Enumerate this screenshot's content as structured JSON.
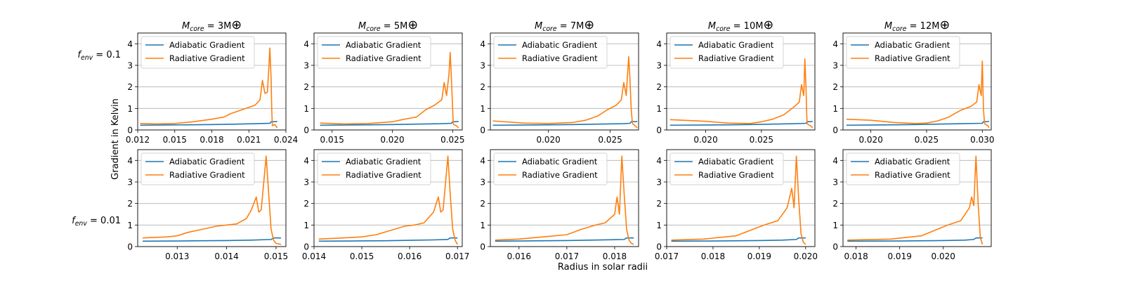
{
  "figure": {
    "ylabel": "Gradient in Kelvin",
    "xlabel": "Radius in solar radii",
    "row_labels": [
      "f_env = 0.1",
      "f_env = 0.01"
    ],
    "col_titles": [
      "M_core = 3M⊕",
      "M_core = 5M⊕",
      "M_core = 7M⊕",
      "M_core = 10M⊕",
      "M_core = 12M⊕"
    ],
    "colors": {
      "adiabatic": "#1f77b4",
      "radiative": "#ff7f0e",
      "grid": "#b0b0b0"
    }
  },
  "chart_data": [
    {
      "type": "line",
      "title": "M_core = 3M⊕",
      "row_label": "f_env = 0.1",
      "xlim": [
        0.012,
        0.024
      ],
      "ylim": [
        0,
        4.5
      ],
      "xticks": [
        "0.012",
        "0.015",
        "0.018",
        "0.021",
        "0.024"
      ],
      "yticks": [
        "0",
        "1",
        "2",
        "3",
        "4"
      ],
      "legend": [
        "Adiabatic Gradient",
        "Radiative Gradient"
      ],
      "legend_loc": "upper-left",
      "grid": "y",
      "series": [
        {
          "name": "Adiabatic Gradient",
          "x": [
            0.0122,
            0.014,
            0.016,
            0.018,
            0.02,
            0.0215,
            0.0227,
            0.0228,
            0.0232,
            0.0233
          ],
          "y": [
            0.22,
            0.23,
            0.24,
            0.25,
            0.27,
            0.29,
            0.31,
            0.38,
            0.39,
            0.4
          ]
        },
        {
          "name": "Radiative Gradient",
          "x": [
            0.0122,
            0.0135,
            0.015,
            0.0165,
            0.018,
            0.019,
            0.0195,
            0.0205,
            0.021,
            0.0215,
            0.0219,
            0.0221,
            0.0223,
            0.0225,
            0.0226,
            0.0227,
            0.0228,
            0.02285,
            0.0229,
            0.0231,
            0.0233
          ],
          "y": [
            0.3,
            0.28,
            0.3,
            0.38,
            0.5,
            0.6,
            0.75,
            0.95,
            1.05,
            1.15,
            1.4,
            2.3,
            1.7,
            1.75,
            2.7,
            3.8,
            2.4,
            1.0,
            0.2,
            0.25,
            0.1
          ]
        }
      ]
    },
    {
      "type": "line",
      "title": "M_core = 5M⊕",
      "row_label": "",
      "xlim": [
        0.0135,
        0.0258
      ],
      "ylim": [
        0,
        4.5
      ],
      "xticks": [
        "0.015",
        "0.020",
        "0.025"
      ],
      "yticks": [
        "0",
        "1",
        "2",
        "3",
        "4"
      ],
      "legend": [
        "Adiabatic Gradient",
        "Radiative Gradient"
      ],
      "legend_loc": "upper-left",
      "grid": "y",
      "series": [
        {
          "name": "Adiabatic Gradient",
          "x": [
            0.014,
            0.016,
            0.018,
            0.02,
            0.022,
            0.024,
            0.0249,
            0.025,
            0.0254,
            0.0255
          ],
          "y": [
            0.22,
            0.23,
            0.24,
            0.25,
            0.27,
            0.29,
            0.31,
            0.38,
            0.39,
            0.4
          ]
        },
        {
          "name": "Radiative Gradient",
          "x": [
            0.014,
            0.016,
            0.018,
            0.02,
            0.021,
            0.022,
            0.0228,
            0.0235,
            0.0241,
            0.0243,
            0.0245,
            0.0247,
            0.0248,
            0.0249,
            0.025,
            0.02505,
            0.0251,
            0.0253,
            0.0255
          ],
          "y": [
            0.32,
            0.28,
            0.3,
            0.38,
            0.5,
            0.6,
            0.95,
            1.15,
            1.4,
            2.2,
            1.6,
            2.6,
            3.6,
            2.4,
            1.0,
            0.3,
            0.25,
            0.2,
            0.1
          ]
        }
      ]
    },
    {
      "type": "line",
      "title": "M_core = 7M⊕",
      "row_label": "",
      "xlim": [
        0.0153,
        0.0273
      ],
      "ylim": [
        0,
        4.5
      ],
      "xticks": [
        "0.020",
        "0.025"
      ],
      "yticks": [
        "0",
        "1",
        "2",
        "3",
        "4"
      ],
      "legend": [
        "Adiabatic Gradient",
        "Radiative Gradient"
      ],
      "legend_loc": "upper-left",
      "grid": "y",
      "series": [
        {
          "name": "Adiabatic Gradient",
          "x": [
            0.0155,
            0.018,
            0.02,
            0.022,
            0.024,
            0.026,
            0.0266,
            0.0267,
            0.0271,
            0.0272
          ],
          "y": [
            0.22,
            0.23,
            0.24,
            0.25,
            0.27,
            0.29,
            0.31,
            0.38,
            0.39,
            0.4
          ]
        },
        {
          "name": "Radiative Gradient",
          "x": [
            0.0155,
            0.018,
            0.02,
            0.022,
            0.023,
            0.024,
            0.0248,
            0.0255,
            0.0259,
            0.0261,
            0.0263,
            0.0265,
            0.0266,
            0.0267,
            0.0268,
            0.0269,
            0.027,
            0.0272
          ],
          "y": [
            0.42,
            0.32,
            0.3,
            0.35,
            0.45,
            0.65,
            0.95,
            1.15,
            1.4,
            2.2,
            1.6,
            3.4,
            2.4,
            1.0,
            0.3,
            0.25,
            0.2,
            0.1
          ]
        }
      ]
    },
    {
      "type": "line",
      "title": "M_core = 10M⊕",
      "row_label": "",
      "xlim": [
        0.0165,
        0.0298
      ],
      "ylim": [
        0,
        4.5
      ],
      "xticks": [
        "0.020",
        "0.025"
      ],
      "yticks": [
        "0",
        "1",
        "2",
        "3",
        "4"
      ],
      "legend": [
        "Adiabatic Gradient",
        "Radiative Gradient"
      ],
      "legend_loc": "upper-left",
      "grid": "y",
      "series": [
        {
          "name": "Adiabatic Gradient",
          "x": [
            0.0168,
            0.02,
            0.022,
            0.024,
            0.026,
            0.028,
            0.029,
            0.0291,
            0.0295,
            0.0296
          ],
          "y": [
            0.22,
            0.23,
            0.24,
            0.25,
            0.27,
            0.29,
            0.31,
            0.38,
            0.39,
            0.4
          ]
        },
        {
          "name": "Radiative Gradient",
          "x": [
            0.0168,
            0.02,
            0.022,
            0.024,
            0.025,
            0.026,
            0.027,
            0.028,
            0.0284,
            0.0286,
            0.0288,
            0.0289,
            0.029,
            0.02905,
            0.0291,
            0.0292,
            0.0294,
            0.0296
          ],
          "y": [
            0.48,
            0.4,
            0.32,
            0.3,
            0.38,
            0.5,
            0.7,
            1.1,
            1.3,
            2.1,
            1.6,
            3.3,
            2.0,
            1.0,
            0.3,
            0.25,
            0.2,
            0.1
          ]
        }
      ]
    },
    {
      "type": "line",
      "title": "M_core = 12M⊕",
      "row_label": "",
      "xlim": [
        0.0175,
        0.0308
      ],
      "ylim": [
        0,
        4.5
      ],
      "xticks": [
        "0.020",
        "0.025",
        "0.030"
      ],
      "yticks": [
        "0",
        "1",
        "2",
        "3",
        "4"
      ],
      "legend": [
        "Adiabatic Gradient",
        "Radiative Gradient"
      ],
      "legend_loc": "upper-left",
      "grid": "y",
      "series": [
        {
          "name": "Adiabatic Gradient",
          "x": [
            0.0178,
            0.02,
            0.022,
            0.024,
            0.026,
            0.028,
            0.03,
            0.0301,
            0.0305,
            0.0306
          ],
          "y": [
            0.22,
            0.23,
            0.24,
            0.25,
            0.27,
            0.29,
            0.31,
            0.38,
            0.39,
            0.4
          ]
        },
        {
          "name": "Radiative Gradient",
          "x": [
            0.0178,
            0.02,
            0.022,
            0.024,
            0.025,
            0.026,
            0.027,
            0.028,
            0.029,
            0.0295,
            0.0297,
            0.0299,
            0.03,
            0.0301,
            0.0302,
            0.0303,
            0.0305,
            0.0306
          ],
          "y": [
            0.5,
            0.45,
            0.35,
            0.3,
            0.32,
            0.42,
            0.6,
            0.9,
            1.1,
            1.3,
            2.1,
            1.6,
            3.2,
            1.0,
            0.3,
            0.25,
            0.2,
            0.1
          ]
        }
      ]
    },
    {
      "type": "line",
      "title": "",
      "row_label": "f_env = 0.01",
      "xlim": [
        0.0122,
        0.0152
      ],
      "ylim": [
        0,
        4.5
      ],
      "xticks": [
        "0.013",
        "0.014",
        "0.015"
      ],
      "yticks": [
        "0",
        "1",
        "2",
        "3",
        "4"
      ],
      "legend": [
        "Adiabatic Gradient",
        "Radiative Gradient"
      ],
      "legend_loc": "upper-left",
      "grid": "y",
      "series": [
        {
          "name": "Adiabatic Gradient",
          "x": [
            0.0123,
            0.013,
            0.0135,
            0.014,
            0.0145,
            0.0149,
            0.01495,
            0.015,
            0.0151
          ],
          "y": [
            0.25,
            0.26,
            0.27,
            0.28,
            0.3,
            0.33,
            0.4,
            0.4,
            0.4
          ]
        },
        {
          "name": "Radiative Gradient",
          "x": [
            0.0123,
            0.0128,
            0.013,
            0.0132,
            0.0135,
            0.0138,
            0.014,
            0.0142,
            0.0144,
            0.0145,
            0.0146,
            0.01465,
            0.0147,
            0.0148,
            0.01485,
            0.0149,
            0.01495,
            0.015,
            0.0151
          ],
          "y": [
            0.4,
            0.45,
            0.5,
            0.65,
            0.8,
            0.95,
            1.0,
            1.05,
            1.3,
            1.7,
            2.3,
            1.6,
            1.7,
            4.2,
            2.5,
            0.8,
            0.3,
            0.15,
            0.1
          ]
        }
      ]
    },
    {
      "type": "line",
      "title": "",
      "row_label": "",
      "xlim": [
        0.014,
        0.0171
      ],
      "ylim": [
        0,
        4.5
      ],
      "xticks": [
        "0.014",
        "0.015",
        "0.016",
        "0.017"
      ],
      "yticks": [
        "0",
        "1",
        "2",
        "3",
        "4"
      ],
      "legend": [
        "Adiabatic Gradient",
        "Radiative Gradient"
      ],
      "legend_loc": "upper-left",
      "grid": "y",
      "series": [
        {
          "name": "Adiabatic Gradient",
          "x": [
            0.0141,
            0.0148,
            0.0155,
            0.016,
            0.0165,
            0.0168,
            0.01685,
            0.0169,
            0.017
          ],
          "y": [
            0.25,
            0.26,
            0.27,
            0.29,
            0.31,
            0.33,
            0.4,
            0.4,
            0.4
          ]
        },
        {
          "name": "Radiative Gradient",
          "x": [
            0.0141,
            0.0146,
            0.015,
            0.0153,
            0.0156,
            0.0159,
            0.0161,
            0.0163,
            0.0165,
            0.0166,
            0.01665,
            0.0167,
            0.0168,
            0.01685,
            0.0169,
            0.01695,
            0.017
          ],
          "y": [
            0.35,
            0.4,
            0.45,
            0.55,
            0.75,
            0.95,
            1.0,
            1.1,
            1.6,
            2.3,
            1.6,
            1.7,
            4.2,
            2.4,
            0.8,
            0.3,
            0.1
          ]
        }
      ]
    },
    {
      "type": "line",
      "title": "",
      "row_label": "",
      "xlim": [
        0.0154,
        0.0185
      ],
      "ylim": [
        0,
        4.5
      ],
      "xticks": [
        "0.016",
        "0.017",
        "0.018"
      ],
      "yticks": [
        "0",
        "1",
        "2",
        "3",
        "4"
      ],
      "legend": [
        "Adiabatic Gradient",
        "Radiative Gradient"
      ],
      "legend_loc": "upper-left",
      "grid": "y",
      "series": [
        {
          "name": "Adiabatic Gradient",
          "x": [
            0.0155,
            0.016,
            0.017,
            0.0175,
            0.018,
            0.0182,
            0.01825,
            0.0183,
            0.0184
          ],
          "y": [
            0.25,
            0.26,
            0.28,
            0.3,
            0.32,
            0.33,
            0.4,
            0.4,
            0.4
          ]
        },
        {
          "name": "Radiative Gradient",
          "x": [
            0.0155,
            0.016,
            0.0165,
            0.017,
            0.0173,
            0.0176,
            0.0178,
            0.018,
            0.01805,
            0.0181,
            0.01815,
            0.0182,
            0.01825,
            0.0183,
            0.01835,
            0.0184
          ],
          "y": [
            0.3,
            0.35,
            0.45,
            0.55,
            0.8,
            1.0,
            1.1,
            1.5,
            2.3,
            1.5,
            4.2,
            2.4,
            0.8,
            0.3,
            0.15,
            0.1
          ]
        }
      ]
    },
    {
      "type": "line",
      "title": "",
      "row_label": "",
      "xlim": [
        0.017,
        0.0202
      ],
      "ylim": [
        0,
        4.5
      ],
      "xticks": [
        "0.017",
        "0.018",
        "0.019",
        "0.020"
      ],
      "yticks": [
        "0",
        "1",
        "2",
        "3",
        "4"
      ],
      "legend": [
        "Adiabatic Gradient",
        "Radiative Gradient"
      ],
      "legend_loc": "upper-left",
      "grid": "y",
      "series": [
        {
          "name": "Adiabatic Gradient",
          "x": [
            0.0171,
            0.018,
            0.019,
            0.0195,
            0.0198,
            0.01985,
            0.0199,
            0.02
          ],
          "y": [
            0.25,
            0.26,
            0.28,
            0.3,
            0.33,
            0.4,
            0.4,
            0.4
          ]
        },
        {
          "name": "Radiative Gradient",
          "x": [
            0.0171,
            0.0178,
            0.0185,
            0.0188,
            0.0191,
            0.0194,
            0.0196,
            0.0197,
            0.01975,
            0.0198,
            0.01985,
            0.0199,
            0.01995,
            0.02
          ],
          "y": [
            0.3,
            0.35,
            0.5,
            0.75,
            1.0,
            1.2,
            1.8,
            2.7,
            1.8,
            4.2,
            2.2,
            0.6,
            0.2,
            0.1
          ]
        }
      ]
    },
    {
      "type": "line",
      "title": "",
      "row_label": "",
      "xlim": [
        0.0177,
        0.0211
      ],
      "ylim": [
        0,
        4.5
      ],
      "xticks": [
        "0.018",
        "0.019",
        "0.020"
      ],
      "yticks": [
        "0",
        "1",
        "2",
        "3",
        "4"
      ],
      "legend": [
        "Adiabatic Gradient",
        "Radiative Gradient"
      ],
      "legend_loc": "upper-left",
      "grid": "y",
      "series": [
        {
          "name": "Adiabatic Gradient",
          "x": [
            0.0178,
            0.019,
            0.02,
            0.0205,
            0.0207,
            0.02075,
            0.0208,
            0.0209
          ],
          "y": [
            0.25,
            0.26,
            0.28,
            0.3,
            0.33,
            0.4,
            0.4,
            0.4
          ]
        },
        {
          "name": "Radiative Gradient",
          "x": [
            0.0178,
            0.0188,
            0.0195,
            0.0198,
            0.0201,
            0.0204,
            0.0206,
            0.02065,
            0.0207,
            0.02075,
            0.0208,
            0.02085,
            0.0209
          ],
          "y": [
            0.3,
            0.35,
            0.5,
            0.75,
            1.0,
            1.2,
            1.8,
            2.3,
            1.9,
            4.2,
            2.0,
            0.4,
            0.1
          ]
        }
      ]
    }
  ]
}
